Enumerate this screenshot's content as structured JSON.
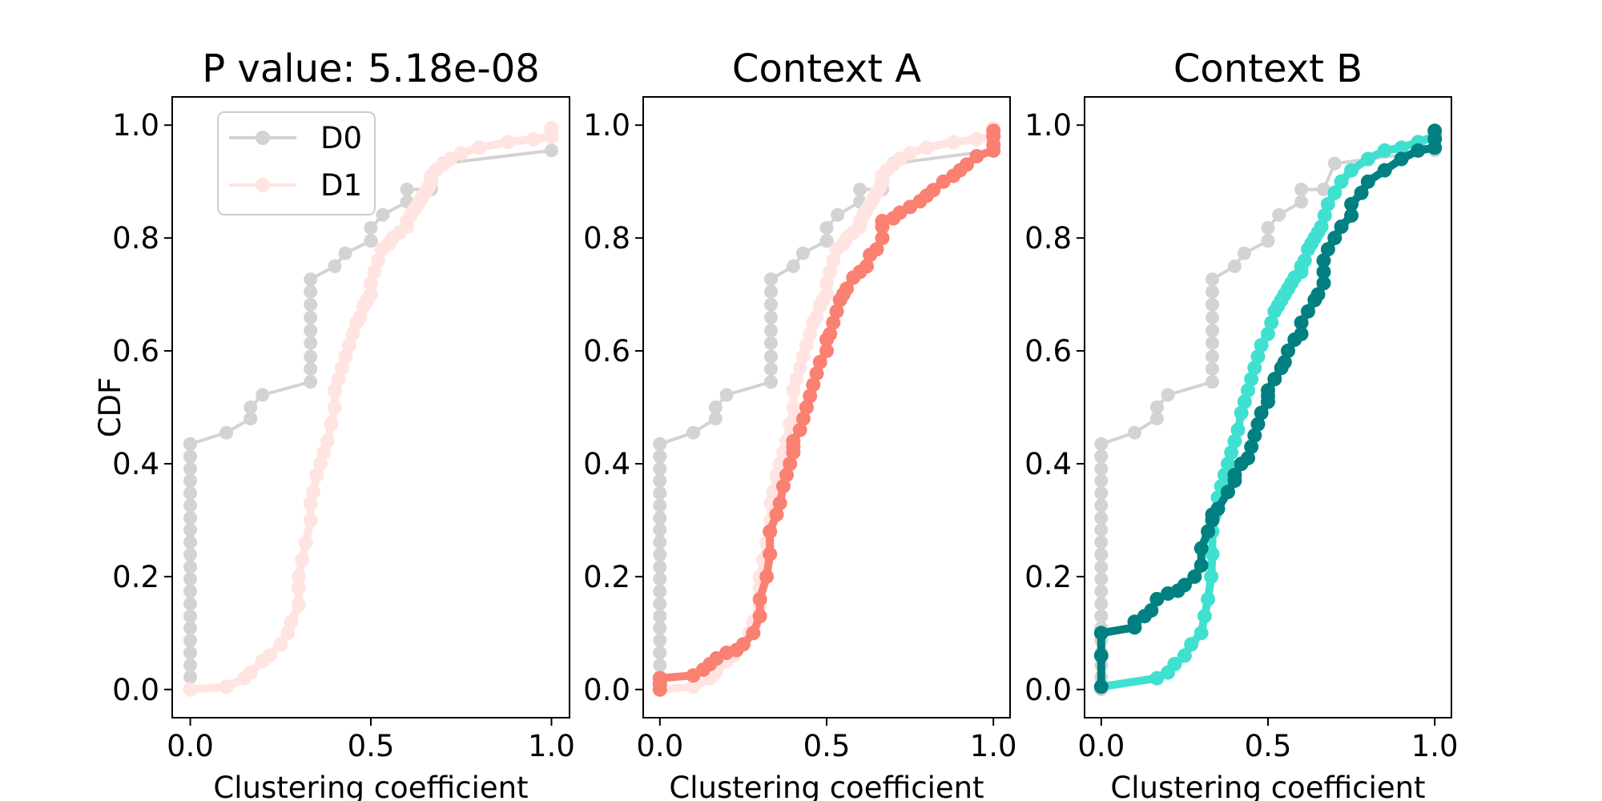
{
  "chart_data": {
    "type": "line",
    "ylabel": "CDF",
    "colors": {
      "D0": "#d3d3d3",
      "D1": "#ffe4e1",
      "contextA": "#fa8072",
      "contextB_light": "#40e0d0",
      "contextB_dark": "#008080"
    },
    "legend": {
      "placement": "upper-left",
      "entries": [
        "D0",
        "D1"
      ]
    },
    "grid": false,
    "panels": [
      {
        "title": "P value: 5.18e-08",
        "xlabel": "Clustering coefficient",
        "xlim": [
          -0.05,
          1.05
        ],
        "ylim": [
          -0.05,
          1.05
        ],
        "xticks": [
          "0.0",
          "0.5",
          "1.0"
        ],
        "yticks": [
          "0.0",
          "0.2",
          "0.4",
          "0.6",
          "0.8",
          "1.0"
        ],
        "series": [
          {
            "name": "D0",
            "color": "#d3d3d3",
            "weight": "thin",
            "x": [
              0.0,
              0.0,
              0.0,
              0.0,
              0.0,
              0.0,
              0.0,
              0.0,
              0.0,
              0.0,
              0.0,
              0.0,
              0.0,
              0.0,
              0.0,
              0.0,
              0.0,
              0.0,
              0.0,
              0.0,
              0.0,
              0.0,
              0.0,
              0.1,
              0.167,
              0.167,
              0.2,
              0.333,
              0.333,
              0.333,
              0.333,
              0.333,
              0.333,
              0.333,
              0.333,
              0.333,
              0.4,
              0.429,
              0.5,
              0.5,
              0.5,
              0.533,
              0.6,
              0.6,
              0.667,
              0.7,
              1.0
            ],
            "y": [
              0.0,
              0.022,
              0.043,
              0.065,
              0.087,
              0.109,
              0.13,
              0.152,
              0.174,
              0.196,
              0.217,
              0.239,
              0.261,
              0.283,
              0.304,
              0.326,
              0.348,
              0.37,
              0.391,
              0.413,
              0.413,
              0.435,
              0.435,
              0.455,
              0.48,
              0.5,
              0.522,
              0.545,
              0.568,
              0.59,
              0.614,
              0.636,
              0.659,
              0.682,
              0.705,
              0.727,
              0.75,
              0.773,
              0.795,
              0.795,
              0.818,
              0.841,
              0.864,
              0.886,
              0.886,
              0.932,
              0.955
            ]
          },
          {
            "name": "D1",
            "color": "#ffe4e1",
            "weight": "dense",
            "x": [
              0.0,
              0.1,
              0.15,
              0.167,
              0.2,
              0.22,
              0.25,
              0.27,
              0.28,
              0.3,
              0.3,
              0.3,
              0.31,
              0.32,
              0.333,
              0.333,
              0.34,
              0.35,
              0.36,
              0.37,
              0.38,
              0.39,
              0.4,
              0.4,
              0.41,
              0.42,
              0.43,
              0.44,
              0.45,
              0.46,
              0.47,
              0.48,
              0.49,
              0.5,
              0.5,
              0.51,
              0.52,
              0.53,
              0.55,
              0.56,
              0.58,
              0.6,
              0.6,
              0.61,
              0.62,
              0.63,
              0.64,
              0.65,
              0.66,
              0.667,
              0.667,
              0.68,
              0.7,
              0.72,
              0.75,
              0.8,
              0.88,
              0.95,
              1.0,
              1.0,
              1.0
            ],
            "y": [
              0.0,
              0.005,
              0.02,
              0.03,
              0.05,
              0.06,
              0.08,
              0.1,
              0.12,
              0.15,
              0.18,
              0.2,
              0.23,
              0.26,
              0.3,
              0.33,
              0.35,
              0.38,
              0.4,
              0.42,
              0.44,
              0.47,
              0.5,
              0.53,
              0.55,
              0.57,
              0.59,
              0.61,
              0.63,
              0.65,
              0.66,
              0.68,
              0.69,
              0.7,
              0.72,
              0.74,
              0.76,
              0.78,
              0.79,
              0.8,
              0.81,
              0.82,
              0.83,
              0.84,
              0.85,
              0.86,
              0.87,
              0.88,
              0.89,
              0.9,
              0.91,
              0.92,
              0.93,
              0.94,
              0.95,
              0.96,
              0.97,
              0.975,
              0.98,
              0.99,
              0.995
            ]
          }
        ]
      },
      {
        "title": "Context A",
        "xlabel": "Clustering coefficient",
        "xlim": [
          -0.05,
          1.05
        ],
        "ylim": [
          -0.05,
          1.05
        ],
        "xticks": [
          "0.0",
          "0.5",
          "1.0"
        ],
        "yticks": [
          "0.0",
          "0.2",
          "0.4",
          "0.6",
          "0.8",
          "1.0"
        ],
        "series": [
          {
            "name": "D0",
            "color": "#d3d3d3",
            "weight": "thin",
            "ref": "D0"
          },
          {
            "name": "D1",
            "color": "#ffe4e1",
            "weight": "dense",
            "ref": "D1"
          },
          {
            "name": "Context A",
            "color": "#fa8072",
            "weight": "dense",
            "x": [
              0.0,
              0.0,
              0.0,
              0.1,
              0.13,
              0.15,
              0.17,
              0.2,
              0.23,
              0.25,
              0.28,
              0.3,
              0.3,
              0.32,
              0.33,
              0.33,
              0.35,
              0.36,
              0.37,
              0.38,
              0.39,
              0.4,
              0.4,
              0.4,
              0.42,
              0.43,
              0.44,
              0.45,
              0.46,
              0.47,
              0.48,
              0.5,
              0.5,
              0.51,
              0.52,
              0.53,
              0.54,
              0.55,
              0.56,
              0.58,
              0.6,
              0.62,
              0.63,
              0.65,
              0.667,
              0.667,
              0.667,
              0.7,
              0.72,
              0.75,
              0.78,
              0.8,
              0.82,
              0.85,
              0.88,
              0.9,
              0.92,
              0.95,
              1.0,
              1.0,
              1.0,
              1.0
            ],
            "y": [
              0.0,
              0.01,
              0.02,
              0.025,
              0.035,
              0.045,
              0.055,
              0.065,
              0.07,
              0.08,
              0.1,
              0.13,
              0.16,
              0.2,
              0.24,
              0.28,
              0.31,
              0.33,
              0.36,
              0.38,
              0.4,
              0.42,
              0.43,
              0.44,
              0.46,
              0.48,
              0.5,
              0.52,
              0.54,
              0.56,
              0.58,
              0.6,
              0.62,
              0.63,
              0.65,
              0.67,
              0.69,
              0.7,
              0.71,
              0.73,
              0.74,
              0.75,
              0.77,
              0.78,
              0.8,
              0.82,
              0.83,
              0.835,
              0.845,
              0.855,
              0.865,
              0.875,
              0.885,
              0.9,
              0.91,
              0.92,
              0.93,
              0.945,
              0.955,
              0.965,
              0.98,
              0.99
            ]
          }
        ]
      },
      {
        "title": "Context B",
        "xlabel": "Clustering coefficient",
        "xlim": [
          -0.05,
          1.05
        ],
        "ylim": [
          -0.05,
          1.05
        ],
        "xticks": [
          "0.0",
          "0.5",
          "1.0"
        ],
        "yticks": [
          "0.0",
          "0.2",
          "0.4",
          "0.6",
          "0.8",
          "1.0"
        ],
        "series": [
          {
            "name": "D0",
            "color": "#d3d3d3",
            "weight": "thin",
            "ref": "D0"
          },
          {
            "name": "Context B (light)",
            "color": "#40e0d0",
            "weight": "dense",
            "x": [
              0.0,
              0.167,
              0.2,
              0.22,
              0.25,
              0.27,
              0.3,
              0.31,
              0.32,
              0.33,
              0.333,
              0.333,
              0.34,
              0.35,
              0.36,
              0.37,
              0.38,
              0.39,
              0.4,
              0.41,
              0.42,
              0.43,
              0.44,
              0.45,
              0.46,
              0.47,
              0.48,
              0.5,
              0.51,
              0.52,
              0.53,
              0.54,
              0.55,
              0.56,
              0.57,
              0.58,
              0.6,
              0.6,
              0.61,
              0.62,
              0.63,
              0.64,
              0.65,
              0.66,
              0.67,
              0.68,
              0.7,
              0.72,
              0.75,
              0.8,
              0.85,
              0.9,
              0.95,
              1.0
            ],
            "y": [
              0.005,
              0.02,
              0.03,
              0.045,
              0.06,
              0.08,
              0.1,
              0.13,
              0.16,
              0.2,
              0.24,
              0.28,
              0.31,
              0.34,
              0.36,
              0.38,
              0.4,
              0.42,
              0.44,
              0.46,
              0.49,
              0.51,
              0.53,
              0.55,
              0.57,
              0.59,
              0.61,
              0.63,
              0.65,
              0.67,
              0.68,
              0.69,
              0.7,
              0.71,
              0.72,
              0.73,
              0.74,
              0.75,
              0.76,
              0.78,
              0.79,
              0.8,
              0.81,
              0.82,
              0.84,
              0.86,
              0.88,
              0.9,
              0.92,
              0.94,
              0.955,
              0.96,
              0.97,
              0.98
            ]
          },
          {
            "name": "Context B (dark)",
            "color": "#008080",
            "weight": "dense",
            "x": [
              0.0,
              0.0,
              0.0,
              0.1,
              0.1,
              0.13,
              0.15,
              0.167,
              0.2,
              0.23,
              0.25,
              0.28,
              0.3,
              0.3,
              0.32,
              0.333,
              0.333,
              0.35,
              0.38,
              0.4,
              0.4,
              0.42,
              0.44,
              0.45,
              0.46,
              0.47,
              0.48,
              0.5,
              0.5,
              0.5,
              0.52,
              0.54,
              0.55,
              0.56,
              0.58,
              0.6,
              0.6,
              0.62,
              0.64,
              0.65,
              0.667,
              0.667,
              0.667,
              0.68,
              0.7,
              0.72,
              0.75,
              0.75,
              0.78,
              0.8,
              0.85,
              0.9,
              0.95,
              1.0,
              1.0,
              1.0
            ],
            "y": [
              0.005,
              0.06,
              0.1,
              0.11,
              0.12,
              0.13,
              0.14,
              0.16,
              0.17,
              0.175,
              0.185,
              0.2,
              0.22,
              0.25,
              0.28,
              0.3,
              0.31,
              0.32,
              0.35,
              0.37,
              0.38,
              0.4,
              0.41,
              0.43,
              0.45,
              0.47,
              0.49,
              0.51,
              0.52,
              0.53,
              0.55,
              0.57,
              0.58,
              0.6,
              0.62,
              0.63,
              0.65,
              0.67,
              0.69,
              0.7,
              0.72,
              0.74,
              0.76,
              0.78,
              0.8,
              0.82,
              0.84,
              0.86,
              0.88,
              0.9,
              0.92,
              0.94,
              0.955,
              0.96,
              0.975,
              0.99
            ]
          }
        ]
      }
    ]
  }
}
